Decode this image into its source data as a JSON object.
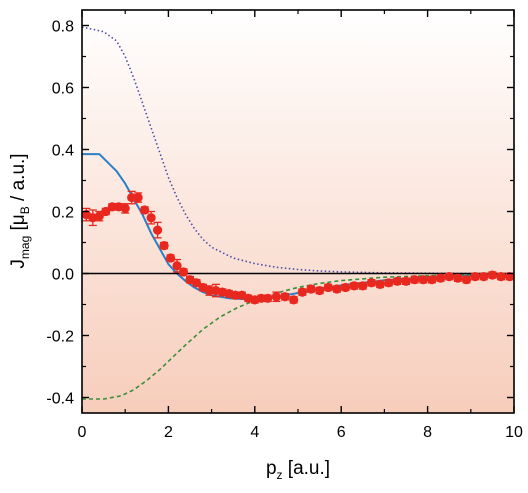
{
  "chart_data": {
    "type": "line",
    "title": "",
    "xlabel": "p_z [a.u.]",
    "ylabel": "J_mag [μ_B / a.u.]",
    "xlabel_parts": {
      "main": "p",
      "sub": "z",
      "rest": " [a.u.]"
    },
    "ylabel_parts": {
      "main": "J",
      "sub1": "mag",
      "mid": " [μ",
      "sub2": "B",
      "rest": " / a.u.]"
    },
    "xlim": [
      0,
      10
    ],
    "ylim": [
      -0.45,
      0.85
    ],
    "xticks": [
      0,
      2,
      4,
      6,
      8,
      10
    ],
    "yticks": [
      -0.4,
      -0.2,
      0.0,
      0.2,
      0.4,
      0.6,
      0.8
    ],
    "xtick_labels": [
      "0",
      "2",
      "4",
      "6",
      "8",
      "10"
    ],
    "ytick_labels": [
      "-0.4",
      "-0.2",
      "0.0",
      "0.2",
      "0.4",
      "0.6",
      "0.8"
    ],
    "grid": false,
    "zero_line": true,
    "colors": {
      "experiment": "#e8281e",
      "solid": "#2b7fc6",
      "dotted": "#4b4ea8",
      "dashed": "#3a8f3a",
      "bg_top": "#ffffff",
      "bg_bottom": "#f7cdbb"
    },
    "series": [
      {
        "style": "dotted",
        "x": [
          0,
          0.5,
          0.8,
          1.0,
          1.2,
          1.4,
          1.6,
          1.8,
          2.0,
          2.2,
          2.4,
          2.6,
          2.8,
          3.0,
          3.5,
          4.0,
          4.5,
          5.0,
          5.5,
          6.0,
          7.0,
          8.0,
          9.0,
          10.0
        ],
        "y": [
          0.795,
          0.78,
          0.75,
          0.7,
          0.63,
          0.55,
          0.47,
          0.39,
          0.31,
          0.245,
          0.19,
          0.145,
          0.11,
          0.085,
          0.05,
          0.032,
          0.02,
          0.013,
          0.008,
          0.005,
          0.002,
          0.001,
          0.0,
          0.0
        ]
      },
      {
        "style": "solid",
        "x": [
          0,
          0.4,
          0.8,
          1.0,
          1.2,
          1.4,
          1.6,
          1.8,
          2.0,
          2.2,
          2.4,
          2.6,
          2.8,
          3.0,
          3.4,
          3.8,
          4.2,
          4.6,
          5.0,
          5.5,
          6.0,
          7.0,
          8.0,
          9.0,
          10.0
        ],
        "y": [
          0.385,
          0.385,
          0.33,
          0.29,
          0.24,
          0.19,
          0.13,
          0.08,
          0.03,
          0.0,
          -0.025,
          -0.045,
          -0.06,
          -0.07,
          -0.08,
          -0.083,
          -0.08,
          -0.073,
          -0.063,
          -0.05,
          -0.038,
          -0.022,
          -0.012,
          -0.006,
          -0.003
        ]
      },
      {
        "style": "dashed",
        "x": [
          0,
          0.5,
          0.9,
          1.2,
          1.5,
          1.8,
          2.1,
          2.4,
          2.8,
          3.2,
          3.6,
          4.0,
          4.5,
          5.0,
          5.5,
          6.0,
          7.0,
          8.0,
          9.0,
          10.0
        ],
        "y": [
          -0.405,
          -0.405,
          -0.395,
          -0.375,
          -0.345,
          -0.31,
          -0.27,
          -0.23,
          -0.18,
          -0.14,
          -0.11,
          -0.087,
          -0.063,
          -0.045,
          -0.032,
          -0.023,
          -0.012,
          -0.007,
          -0.003,
          -0.001
        ]
      },
      {
        "style": "markers",
        "x": [
          0.1,
          0.25,
          0.4,
          0.55,
          0.7,
          0.85,
          1.0,
          1.15,
          1.3,
          1.45,
          1.6,
          1.75,
          1.9,
          2.05,
          2.2,
          2.35,
          2.5,
          2.65,
          2.8,
          2.95,
          3.1,
          3.25,
          3.4,
          3.55,
          3.7,
          3.85,
          4.0,
          4.15,
          4.3,
          4.5,
          4.7,
          4.9,
          5.1,
          5.3,
          5.5,
          5.7,
          5.9,
          6.1,
          6.3,
          6.5,
          6.7,
          6.9,
          7.1,
          7.3,
          7.5,
          7.7,
          7.9,
          8.1,
          8.3,
          8.5,
          8.7,
          8.9,
          9.1,
          9.3,
          9.5,
          9.7,
          9.9
        ],
        "y": [
          0.19,
          0.18,
          0.185,
          0.2,
          0.215,
          0.215,
          0.21,
          0.245,
          0.245,
          0.205,
          0.18,
          0.14,
          0.09,
          0.05,
          0.025,
          0.005,
          -0.02,
          -0.03,
          -0.045,
          -0.055,
          -0.055,
          -0.06,
          -0.065,
          -0.07,
          -0.07,
          -0.08,
          -0.085,
          -0.08,
          -0.08,
          -0.075,
          -0.075,
          -0.085,
          -0.06,
          -0.05,
          -0.055,
          -0.045,
          -0.05,
          -0.045,
          -0.04,
          -0.04,
          -0.03,
          -0.035,
          -0.03,
          -0.025,
          -0.025,
          -0.02,
          -0.02,
          -0.02,
          -0.015,
          -0.01,
          -0.015,
          -0.02,
          -0.01,
          -0.01,
          -0.005,
          -0.01,
          -0.01
        ],
        "err": [
          0.02,
          0.025,
          0.015,
          0.01,
          0.01,
          0.01,
          0.015,
          0.02,
          0.015,
          0.01,
          0.02,
          0.025,
          0.01,
          0.01,
          0.02,
          0.01,
          0.01,
          0.01,
          0.01,
          0.015,
          0.02,
          0.01,
          0.01,
          0.01,
          0.01,
          0.01,
          0.01,
          0.01,
          0.01,
          0.015,
          0.01,
          0.01,
          0.01,
          0.01,
          0.01,
          0.01,
          0.01,
          0.01,
          0.01,
          0.01,
          0.01,
          0.01,
          0.01,
          0.01,
          0.01,
          0.01,
          0.01,
          0.01,
          0.01,
          0.01,
          0.01,
          0.01,
          0.01,
          0.01,
          0.01,
          0.01,
          0.01
        ]
      }
    ]
  }
}
